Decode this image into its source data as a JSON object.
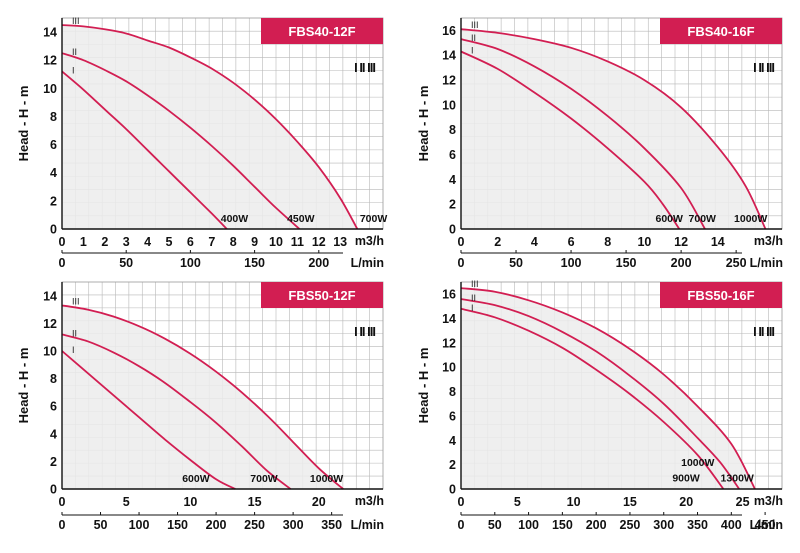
{
  "chart_data": [
    {
      "type": "line",
      "title": "FBS40-12F",
      "ylabel": "Head - H - m",
      "xunit": "m3/h",
      "x2unit": "L/min",
      "speed_mark": "I II III",
      "xlim": [
        0,
        15
      ],
      "ylim": [
        0,
        15
      ],
      "xticks": [
        0,
        1,
        2,
        3,
        4,
        5,
        6,
        7,
        8,
        9,
        10,
        11,
        12,
        13
      ],
      "yticks": [
        0,
        2,
        4,
        6,
        8,
        10,
        12,
        14
      ],
      "x2ticks": [
        0,
        50,
        100,
        150,
        200
      ],
      "grid": true,
      "series": [
        {
          "name": "I",
          "power": "400W",
          "x": [
            0,
            1,
            2,
            3,
            4,
            5,
            6,
            7,
            7.7
          ],
          "y": [
            11.2,
            9.9,
            8.5,
            7.1,
            5.6,
            4.1,
            2.6,
            1.1,
            0
          ]
        },
        {
          "name": "II",
          "power": "450W",
          "x": [
            0,
            1,
            2,
            3,
            4,
            5,
            6,
            7,
            8,
            9,
            10,
            11.1
          ],
          "y": [
            12.5,
            12.0,
            11.3,
            10.5,
            9.5,
            8.4,
            7.2,
            5.9,
            4.5,
            3.0,
            1.5,
            0
          ]
        },
        {
          "name": "III",
          "power": "700W",
          "x": [
            0,
            1,
            2,
            3,
            4,
            5,
            6,
            7,
            8,
            9,
            10,
            11,
            12,
            13,
            13.8
          ],
          "y": [
            14.5,
            14.4,
            14.2,
            13.9,
            13.4,
            12.9,
            12.2,
            11.4,
            10.4,
            9.2,
            7.8,
            6.2,
            4.4,
            2.2,
            0
          ]
        }
      ]
    },
    {
      "type": "line",
      "title": "FBS40-16F",
      "ylabel": "Head - H - m",
      "xunit": "m3/h",
      "x2unit": "L/min",
      "speed_mark": "I II III",
      "xlim": [
        0,
        17.5
      ],
      "ylim": [
        0,
        17
      ],
      "xticks": [
        0,
        2,
        4,
        6,
        8,
        10,
        12,
        14
      ],
      "yticks": [
        0,
        2,
        4,
        6,
        8,
        10,
        12,
        14,
        16
      ],
      "x2ticks": [
        0,
        50,
        100,
        150,
        200,
        250
      ],
      "grid": true,
      "series": [
        {
          "name": "I",
          "power": "600W",
          "x": [
            0,
            2,
            4,
            6,
            8,
            10,
            11,
            11.9
          ],
          "y": [
            14.3,
            12.9,
            11.0,
            8.9,
            6.5,
            3.8,
            2.0,
            0
          ]
        },
        {
          "name": "II",
          "power": "700W",
          "x": [
            0,
            2,
            4,
            6,
            8,
            10,
            12,
            13.3
          ],
          "y": [
            15.3,
            14.5,
            13.1,
            11.3,
            9.1,
            6.5,
            3.3,
            0
          ]
        },
        {
          "name": "III",
          "power": "1000W",
          "x": [
            0,
            2,
            4,
            6,
            8,
            10,
            12,
            14,
            15.5,
            16.6
          ],
          "y": [
            16.1,
            15.8,
            15.3,
            14.6,
            13.5,
            12.0,
            9.8,
            6.6,
            3.5,
            0
          ]
        }
      ]
    },
    {
      "type": "line",
      "title": "FBS50-12F",
      "ylabel": "Head - H - m",
      "xunit": "m3/h",
      "x2unit": "L/min",
      "speed_mark": "I II III",
      "xlim": [
        0,
        25
      ],
      "ylim": [
        0,
        15
      ],
      "xticks": [
        0,
        5,
        10,
        15,
        20
      ],
      "yticks": [
        0,
        2,
        4,
        6,
        8,
        10,
        12,
        14
      ],
      "x2ticks": [
        0,
        50,
        100,
        150,
        200,
        250,
        300,
        350
      ],
      "grid": true,
      "series": [
        {
          "name": "I",
          "power": "600W",
          "x": [
            0,
            2,
            4,
            6,
            8,
            10,
            12,
            13.5
          ],
          "y": [
            10,
            8.4,
            6.8,
            5.2,
            3.6,
            2.1,
            0.7,
            0
          ]
        },
        {
          "name": "II",
          "power": "700W",
          "x": [
            0,
            2,
            4,
            6,
            8,
            10,
            12,
            14,
            16,
            17.8
          ],
          "y": [
            11.2,
            10.7,
            9.9,
            8.9,
            7.7,
            6.3,
            4.8,
            3.1,
            1.3,
            0
          ]
        },
        {
          "name": "III",
          "power": "1000W",
          "x": [
            0,
            2,
            4,
            6,
            8,
            10,
            12,
            14,
            16,
            18,
            20,
            21.9
          ],
          "y": [
            13.3,
            13.0,
            12.5,
            11.8,
            10.9,
            9.8,
            8.5,
            7.0,
            5.3,
            3.4,
            1.5,
            0
          ]
        }
      ]
    },
    {
      "type": "line",
      "title": "FBS50-16F",
      "ylabel": "Head - H - m",
      "xunit": "m3/h",
      "x2unit": "L/min",
      "speed_mark": "I II III",
      "xlim": [
        0,
        28.5
      ],
      "ylim": [
        0,
        17
      ],
      "xticks": [
        0,
        5,
        10,
        15,
        20,
        25
      ],
      "yticks": [
        0,
        2,
        4,
        6,
        8,
        10,
        12,
        14,
        16
      ],
      "x2ticks": [
        0,
        50,
        100,
        150,
        200,
        250,
        300,
        350,
        400,
        450
      ],
      "grid": true,
      "series": [
        {
          "name": "I",
          "power": "900W",
          "x": [
            0,
            3,
            6,
            9,
            12,
            15,
            18,
            21,
            23.3
          ],
          "y": [
            14.8,
            14.1,
            13.0,
            11.6,
            9.8,
            7.8,
            5.5,
            2.8,
            0
          ]
        },
        {
          "name": "II",
          "power": "1000W",
          "x": [
            0,
            3,
            6,
            9,
            12,
            15,
            18,
            21,
            23,
            24.7
          ],
          "y": [
            15.6,
            15.1,
            14.2,
            12.9,
            11.3,
            9.3,
            7.0,
            4.2,
            2.2,
            0
          ]
        },
        {
          "name": "III",
          "power": "1300W",
          "x": [
            0,
            3,
            6,
            9,
            12,
            15,
            18,
            21,
            24,
            26.1
          ],
          "y": [
            16.5,
            16.2,
            15.5,
            14.5,
            13.2,
            11.5,
            9.4,
            6.8,
            3.7,
            0
          ]
        }
      ]
    }
  ],
  "colors": {
    "curve": "#d21e52",
    "title_bg": "#d21e52",
    "shade": "#ececec",
    "grid": "#b8b8b8",
    "axis": "#111111"
  }
}
